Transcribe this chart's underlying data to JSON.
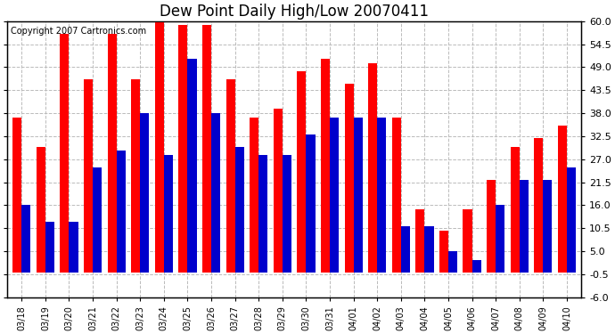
{
  "title": "Dew Point Daily High/Low 20070411",
  "copyright": "Copyright 2007 Cartronics.com",
  "dates": [
    "03/18",
    "03/19",
    "03/20",
    "03/21",
    "03/22",
    "03/23",
    "03/24",
    "03/25",
    "03/26",
    "03/27",
    "03/28",
    "03/29",
    "03/30",
    "03/31",
    "04/01",
    "04/02",
    "04/03",
    "04/04",
    "04/05",
    "04/06",
    "04/07",
    "04/08",
    "04/09",
    "04/10"
  ],
  "highs": [
    37,
    30,
    57,
    46,
    57,
    46,
    60,
    59,
    59,
    46,
    37,
    39,
    48,
    51,
    45,
    50,
    37,
    15,
    10,
    15,
    22,
    30,
    32,
    35
  ],
  "lows": [
    16,
    12,
    12,
    25,
    29,
    38,
    28,
    51,
    38,
    30,
    28,
    28,
    33,
    37,
    37,
    37,
    11,
    11,
    5,
    3,
    16,
    22,
    22,
    25
  ],
  "high_color": "#ff0000",
  "low_color": "#0000cc",
  "background_color": "#ffffff",
  "ylim_min": -6.0,
  "ylim_max": 60.0,
  "yticks": [
    -6.0,
    -0.5,
    5.0,
    10.5,
    16.0,
    21.5,
    27.0,
    32.5,
    38.0,
    43.5,
    49.0,
    54.5,
    60.0
  ],
  "ytick_labels": [
    "-6.0",
    "-0.5",
    "5.0",
    "10.5",
    "16.0",
    "21.5",
    "27.0",
    "32.5",
    "38.0",
    "43.5",
    "49.0",
    "54.5",
    "60.0"
  ],
  "grid_color": "#bbbbbb",
  "bar_width": 0.38,
  "title_fontsize": 12,
  "copyright_fontsize": 7,
  "tick_labelsize": 8
}
